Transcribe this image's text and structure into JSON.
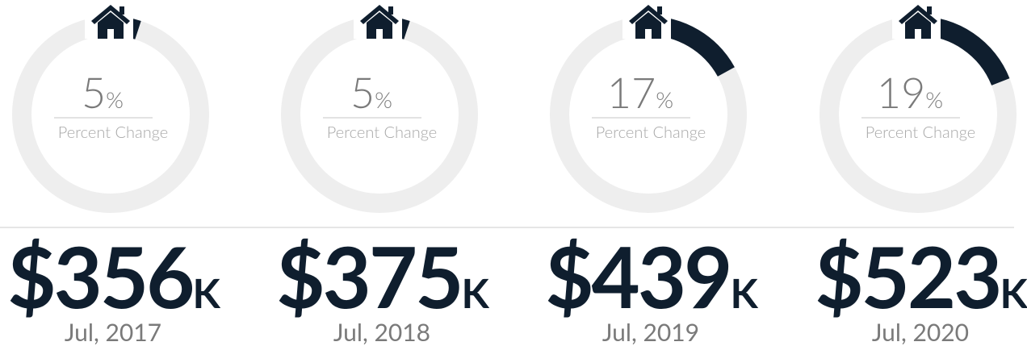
{
  "chart_data": {
    "type": "gauge",
    "categories": [
      "Jul, 2017",
      "Jul, 2018",
      "Jul, 2019",
      "Jul, 2020"
    ],
    "values": [
      5,
      5,
      17,
      19
    ],
    "unit": "%",
    "value_caption": "Percent Change",
    "prices": [
      "$356",
      "$375",
      "$439",
      "$523"
    ],
    "price_unit": "K",
    "ylim": [
      0,
      100
    ],
    "color": "#0f1e2e",
    "track_color": "#eeeeee"
  }
}
